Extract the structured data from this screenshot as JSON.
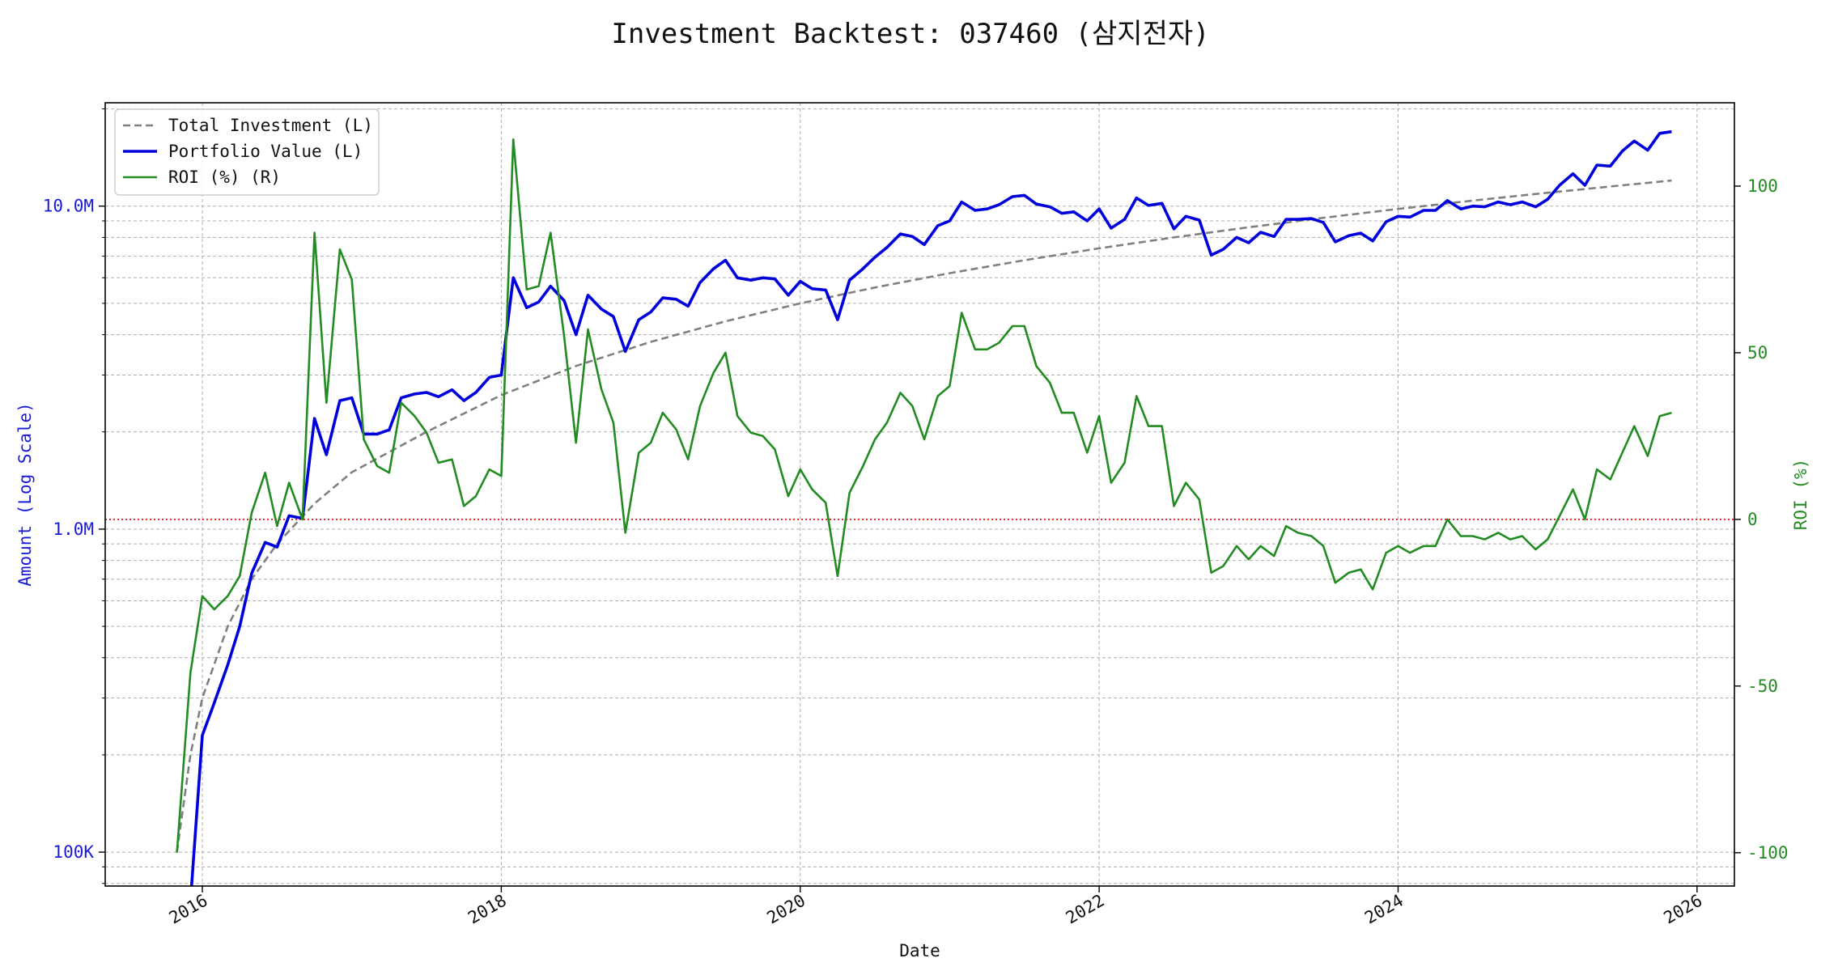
{
  "chart_data": {
    "type": "line",
    "title": "Investment Backtest: 037460 (삼지전자)",
    "xlabel": "Date",
    "ylabel_left": "Amount (Log Scale)",
    "ylabel_right": "ROI (%)",
    "x_ticks": [
      "2016",
      "2018",
      "2020",
      "2022",
      "2024",
      "2026"
    ],
    "y_left_ticks": [
      "100K",
      "1.0M",
      "10.0M"
    ],
    "y_right_ticks": [
      "-100",
      "-50",
      "0",
      "50",
      "100"
    ],
    "x_range": [
      2015.35,
      2026.25
    ],
    "y_left_range_log10": [
      4.895,
      7.32
    ],
    "y_right_range": [
      -110,
      125
    ],
    "scale_left": "log",
    "grid": true,
    "legend_position": "upper-left",
    "roi_zero_line_color": "#dd0000",
    "series": [
      {
        "name": "Total Investment (L)",
        "axis": "left",
        "color": "#808080",
        "style": "dashed",
        "points": [
          [
            2015.83,
            100000
          ],
          [
            2015.92,
            200000
          ],
          [
            2016.0,
            300000
          ],
          [
            2016.17,
            500000
          ],
          [
            2016.33,
            700000
          ],
          [
            2016.5,
            900000
          ],
          [
            2016.75,
            1200000
          ],
          [
            2017.0,
            1500000
          ],
          [
            2017.5,
            2000000
          ],
          [
            2018.0,
            2600000
          ],
          [
            2018.5,
            3200000
          ],
          [
            2019.0,
            3800000
          ],
          [
            2019.5,
            4400000
          ],
          [
            2020.0,
            5000000
          ],
          [
            2020.5,
            5600000
          ],
          [
            2021.0,
            6200000
          ],
          [
            2021.5,
            6800000
          ],
          [
            2022.0,
            7400000
          ],
          [
            2022.5,
            8000000
          ],
          [
            2023.0,
            8600000
          ],
          [
            2023.5,
            9200000
          ],
          [
            2024.0,
            9800000
          ],
          [
            2024.5,
            10400000
          ],
          [
            2025.0,
            11000000
          ],
          [
            2025.5,
            11600000
          ],
          [
            2025.83,
            12000000
          ]
        ]
      },
      {
        "name": "Portfolio Value (L)",
        "axis": "left",
        "color": "#0000dd",
        "style": "solid",
        "points": [
          [
            2015.92,
            70000
          ],
          [
            2016.0,
            230000
          ],
          [
            2016.08,
            290000
          ],
          [
            2016.17,
            380000
          ],
          [
            2016.25,
            500000
          ],
          [
            2016.33,
            730000
          ],
          [
            2016.42,
            910000
          ],
          [
            2016.5,
            880000
          ],
          [
            2016.58,
            1100000
          ],
          [
            2016.67,
            1080000
          ],
          [
            2016.75,
            2200000
          ],
          [
            2016.83,
            1700000
          ],
          [
            2016.92,
            2500000
          ],
          [
            2017.0,
            2550000
          ],
          [
            2017.08,
            1970000
          ],
          [
            2017.17,
            1970000
          ],
          [
            2017.25,
            2030000
          ],
          [
            2017.33,
            2550000
          ],
          [
            2017.42,
            2620000
          ],
          [
            2017.5,
            2650000
          ],
          [
            2017.58,
            2570000
          ],
          [
            2017.67,
            2700000
          ],
          [
            2017.75,
            2500000
          ],
          [
            2017.83,
            2650000
          ],
          [
            2017.92,
            2950000
          ],
          [
            2018.0,
            3000000
          ],
          [
            2018.08,
            6000000
          ],
          [
            2018.17,
            4850000
          ],
          [
            2018.25,
            5050000
          ],
          [
            2018.33,
            5650000
          ],
          [
            2018.42,
            5100000
          ],
          [
            2018.5,
            4000000
          ],
          [
            2018.58,
            5300000
          ],
          [
            2018.67,
            4800000
          ],
          [
            2018.75,
            4550000
          ],
          [
            2018.83,
            3550000
          ],
          [
            2018.92,
            4450000
          ],
          [
            2019.0,
            4700000
          ],
          [
            2019.08,
            5200000
          ],
          [
            2019.17,
            5150000
          ],
          [
            2019.25,
            4900000
          ],
          [
            2019.33,
            5800000
          ],
          [
            2019.42,
            6400000
          ],
          [
            2019.5,
            6800000
          ],
          [
            2019.58,
            6000000
          ],
          [
            2019.67,
            5900000
          ],
          [
            2019.75,
            6000000
          ],
          [
            2019.83,
            5950000
          ],
          [
            2019.92,
            5300000
          ],
          [
            2020.0,
            5850000
          ],
          [
            2020.08,
            5550000
          ],
          [
            2020.17,
            5500000
          ],
          [
            2020.25,
            4450000
          ],
          [
            2020.33,
            5900000
          ],
          [
            2020.42,
            6400000
          ],
          [
            2020.5,
            6950000
          ],
          [
            2020.58,
            7450000
          ],
          [
            2020.67,
            8200000
          ],
          [
            2020.75,
            8050000
          ],
          [
            2020.83,
            7600000
          ],
          [
            2020.92,
            8700000
          ],
          [
            2021.0,
            9000000
          ],
          [
            2021.08,
            10300000
          ],
          [
            2021.17,
            9700000
          ],
          [
            2021.25,
            9800000
          ],
          [
            2021.33,
            10100000
          ],
          [
            2021.42,
            10700000
          ],
          [
            2021.5,
            10800000
          ],
          [
            2021.58,
            10150000
          ],
          [
            2021.67,
            9950000
          ],
          [
            2021.75,
            9500000
          ],
          [
            2021.83,
            9600000
          ],
          [
            2021.92,
            9000000
          ],
          [
            2022.0,
            9800000
          ],
          [
            2022.08,
            8550000
          ],
          [
            2022.17,
            9100000
          ],
          [
            2022.25,
            10600000
          ],
          [
            2022.33,
            10050000
          ],
          [
            2022.42,
            10200000
          ],
          [
            2022.5,
            8500000
          ],
          [
            2022.58,
            9300000
          ],
          [
            2022.67,
            9050000
          ],
          [
            2022.75,
            7050000
          ],
          [
            2022.83,
            7350000
          ],
          [
            2022.92,
            8000000
          ],
          [
            2023.0,
            7700000
          ],
          [
            2023.08,
            8300000
          ],
          [
            2023.17,
            8050000
          ],
          [
            2023.25,
            9100000
          ],
          [
            2023.33,
            9100000
          ],
          [
            2023.42,
            9150000
          ],
          [
            2023.5,
            8900000
          ],
          [
            2023.58,
            7750000
          ],
          [
            2023.67,
            8100000
          ],
          [
            2023.75,
            8250000
          ],
          [
            2023.83,
            7800000
          ],
          [
            2023.92,
            8950000
          ],
          [
            2024.0,
            9300000
          ],
          [
            2024.08,
            9250000
          ],
          [
            2024.17,
            9700000
          ],
          [
            2024.25,
            9700000
          ],
          [
            2024.33,
            10400000
          ],
          [
            2024.42,
            9800000
          ],
          [
            2024.5,
            10000000
          ],
          [
            2024.58,
            9950000
          ],
          [
            2024.67,
            10300000
          ],
          [
            2024.75,
            10100000
          ],
          [
            2024.83,
            10300000
          ],
          [
            2024.92,
            9950000
          ],
          [
            2025.0,
            10500000
          ],
          [
            2025.08,
            11600000
          ],
          [
            2025.17,
            12600000
          ],
          [
            2025.25,
            11600000
          ],
          [
            2025.33,
            13400000
          ],
          [
            2025.42,
            13300000
          ],
          [
            2025.5,
            14800000
          ],
          [
            2025.58,
            15900000
          ],
          [
            2025.67,
            14900000
          ],
          [
            2025.75,
            16800000
          ],
          [
            2025.83,
            17000000
          ]
        ]
      },
      {
        "name": "ROI (%) (R)",
        "axis": "right",
        "color": "#228b22",
        "style": "solid",
        "points": [
          [
            2015.83,
            -100
          ],
          [
            2015.92,
            -46
          ],
          [
            2016.0,
            -23
          ],
          [
            2016.08,
            -27
          ],
          [
            2016.17,
            -23
          ],
          [
            2016.25,
            -17
          ],
          [
            2016.33,
            2
          ],
          [
            2016.42,
            14
          ],
          [
            2016.5,
            -2
          ],
          [
            2016.58,
            11
          ],
          [
            2016.67,
            0
          ],
          [
            2016.75,
            86
          ],
          [
            2016.83,
            35
          ],
          [
            2016.92,
            81
          ],
          [
            2017.0,
            72
          ],
          [
            2017.08,
            24
          ],
          [
            2017.17,
            16
          ],
          [
            2017.25,
            14
          ],
          [
            2017.33,
            35
          ],
          [
            2017.42,
            31
          ],
          [
            2017.5,
            26
          ],
          [
            2017.58,
            17
          ],
          [
            2017.67,
            18
          ],
          [
            2017.75,
            4
          ],
          [
            2017.83,
            7
          ],
          [
            2017.92,
            15
          ],
          [
            2018.0,
            13
          ],
          [
            2018.08,
            114
          ],
          [
            2018.17,
            69
          ],
          [
            2018.25,
            70
          ],
          [
            2018.33,
            86
          ],
          [
            2018.42,
            55
          ],
          [
            2018.5,
            23
          ],
          [
            2018.58,
            57
          ],
          [
            2018.67,
            39
          ],
          [
            2018.75,
            29
          ],
          [
            2018.83,
            -4
          ],
          [
            2018.92,
            20
          ],
          [
            2019.0,
            23
          ],
          [
            2019.08,
            32
          ],
          [
            2019.17,
            27
          ],
          [
            2019.25,
            18
          ],
          [
            2019.33,
            34
          ],
          [
            2019.42,
            44
          ],
          [
            2019.5,
            50
          ],
          [
            2019.58,
            31
          ],
          [
            2019.67,
            26
          ],
          [
            2019.75,
            25
          ],
          [
            2019.83,
            21
          ],
          [
            2019.92,
            7
          ],
          [
            2020.0,
            15
          ],
          [
            2020.08,
            9
          ],
          [
            2020.17,
            5
          ],
          [
            2020.25,
            -17
          ],
          [
            2020.33,
            8
          ],
          [
            2020.42,
            16
          ],
          [
            2020.5,
            24
          ],
          [
            2020.58,
            29
          ],
          [
            2020.67,
            38
          ],
          [
            2020.75,
            34
          ],
          [
            2020.83,
            24
          ],
          [
            2020.92,
            37
          ],
          [
            2021.0,
            40
          ],
          [
            2021.08,
            62
          ],
          [
            2021.17,
            51
          ],
          [
            2021.25,
            51
          ],
          [
            2021.33,
            53
          ],
          [
            2021.42,
            58
          ],
          [
            2021.5,
            58
          ],
          [
            2021.58,
            46
          ],
          [
            2021.67,
            41
          ],
          [
            2021.75,
            32
          ],
          [
            2021.83,
            32
          ],
          [
            2021.92,
            20
          ],
          [
            2022.0,
            31
          ],
          [
            2022.08,
            11
          ],
          [
            2022.17,
            17
          ],
          [
            2022.25,
            37
          ],
          [
            2022.33,
            28
          ],
          [
            2022.42,
            28
          ],
          [
            2022.5,
            4
          ],
          [
            2022.58,
            11
          ],
          [
            2022.67,
            6
          ],
          [
            2022.75,
            -16
          ],
          [
            2022.83,
            -14
          ],
          [
            2022.92,
            -8
          ],
          [
            2023.0,
            -12
          ],
          [
            2023.08,
            -8
          ],
          [
            2023.17,
            -11
          ],
          [
            2023.25,
            -2
          ],
          [
            2023.33,
            -4
          ],
          [
            2023.42,
            -5
          ],
          [
            2023.5,
            -8
          ],
          [
            2023.58,
            -19
          ],
          [
            2023.67,
            -16
          ],
          [
            2023.75,
            -15
          ],
          [
            2023.83,
            -21
          ],
          [
            2023.92,
            -10
          ],
          [
            2024.0,
            -8
          ],
          [
            2024.08,
            -10
          ],
          [
            2024.17,
            -8
          ],
          [
            2024.25,
            -8
          ],
          [
            2024.33,
            0
          ],
          [
            2024.42,
            -5
          ],
          [
            2024.5,
            -5
          ],
          [
            2024.58,
            -6
          ],
          [
            2024.67,
            -4
          ],
          [
            2024.75,
            -6
          ],
          [
            2024.83,
            -5
          ],
          [
            2024.92,
            -9
          ],
          [
            2025.0,
            -6
          ],
          [
            2025.08,
            1
          ],
          [
            2025.17,
            9
          ],
          [
            2025.25,
            0
          ],
          [
            2025.33,
            15
          ],
          [
            2025.42,
            12
          ],
          [
            2025.5,
            20
          ],
          [
            2025.58,
            28
          ],
          [
            2025.67,
            19
          ],
          [
            2025.75,
            31
          ],
          [
            2025.83,
            32
          ]
        ]
      }
    ]
  }
}
